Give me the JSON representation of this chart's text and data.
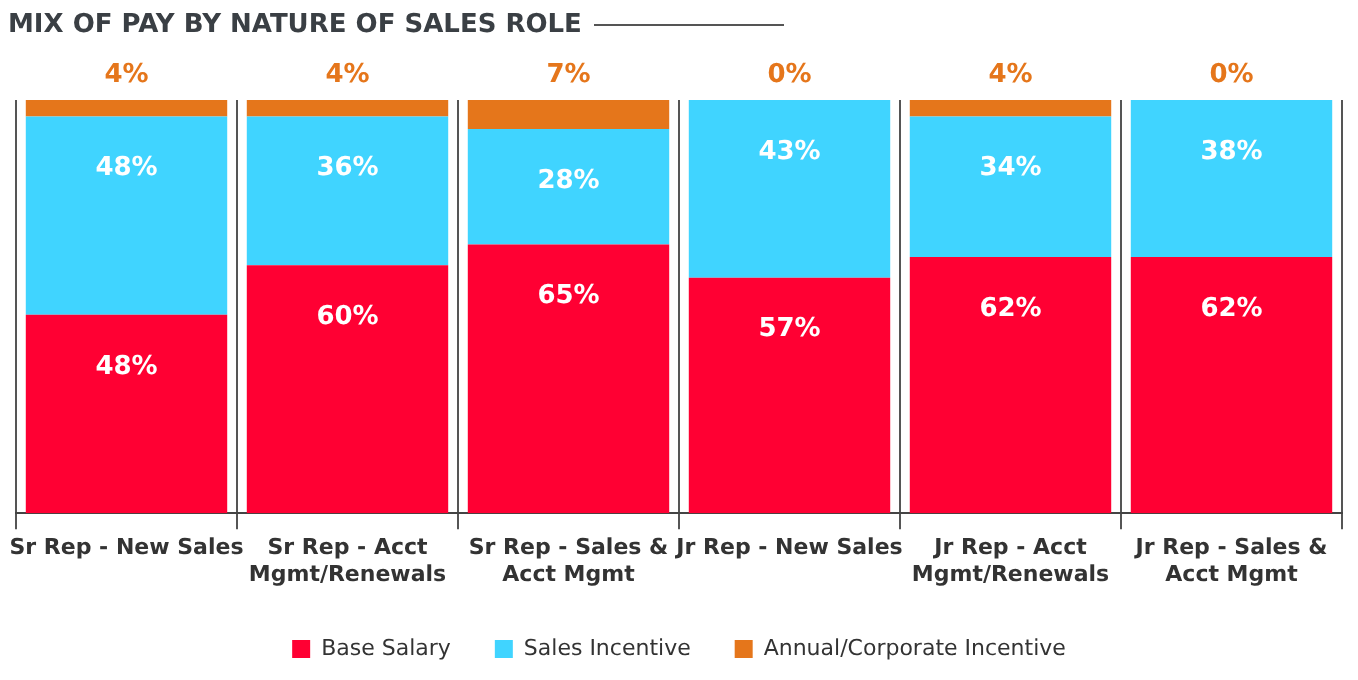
{
  "chart_data": {
    "type": "bar",
    "title": "MIX OF PAY BY NATURE OF SALES ROLE",
    "stacked": true,
    "grid": "x",
    "legend": "bottom",
    "categories": [
      "Sr Rep - New Sales",
      "Sr Rep - Acct Mgmt/Renewals",
      "Sr Rep - Sales & Acct Mgmt",
      "Jr Rep - New Sales",
      "Jr Rep - Acct Mgmt/Renewals",
      "Jr Rep - Sales & Acct Mgmt"
    ],
    "series": [
      {
        "name": "Base Salary",
        "color": "#ff0033",
        "values": [
          48,
          60,
          65,
          57,
          62,
          62
        ],
        "value_labels": [
          "48%",
          "60%",
          "65%",
          "57%",
          "62%",
          "62%"
        ]
      },
      {
        "name": "Sales Incentive",
        "color": "#40d4ff",
        "values": [
          48,
          36,
          28,
          43,
          34,
          38
        ],
        "value_labels": [
          "48%",
          "36%",
          "28%",
          "43%",
          "34%",
          "38%"
        ]
      },
      {
        "name": "Annual/Corporate Incentive",
        "color": "#e5761b",
        "values": [
          4,
          4,
          7,
          0,
          4,
          0
        ],
        "value_labels": [
          "4%",
          "4%",
          "7%",
          "0%",
          "4%",
          "0%"
        ]
      }
    ]
  }
}
